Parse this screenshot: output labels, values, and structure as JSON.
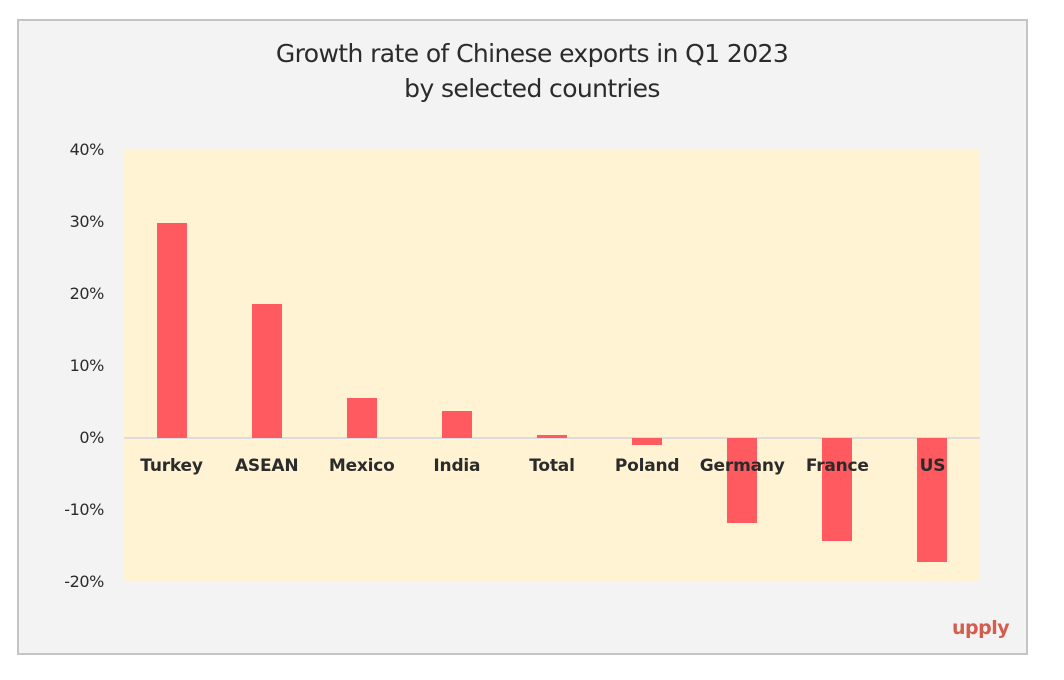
{
  "title_line1": "Growth rate of Chinese exports in Q1 2023",
  "title_line2": "by selected countries",
  "logo": "upply",
  "colors": {
    "bar": "#ff5a5f",
    "plot_background": "#fff3d4",
    "frame_background": "#f3f3f3",
    "logo": "#d35e4e"
  },
  "y_ticks": [
    "40%",
    "30%",
    "20%",
    "10%",
    "0%",
    "-10%",
    "-20%"
  ],
  "chart_data": {
    "type": "bar",
    "title": "Growth rate of Chinese exports in Q1 2023 by selected countries",
    "xlabel": "",
    "ylabel": "",
    "categories": [
      "Turkey",
      "ASEAN",
      "Mexico",
      "India",
      "Total",
      "Poland",
      "Germany",
      "France",
      "US"
    ],
    "values": [
      29.8,
      18.6,
      5.5,
      3.7,
      0.4,
      -1.0,
      -11.8,
      -14.3,
      -17.2
    ],
    "unit": "%",
    "ylim": [
      -20,
      40
    ],
    "y_tick_step": 10,
    "grid": false,
    "legend": "none"
  }
}
